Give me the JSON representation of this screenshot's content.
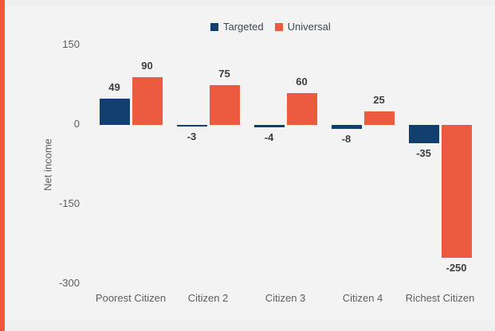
{
  "accent": {
    "stripe_color": "#f0553d"
  },
  "chart_data": {
    "type": "bar",
    "title": "",
    "xlabel": "",
    "ylabel": "Net income",
    "categories": [
      "Poorest Citizen",
      "Citizen 2",
      "Citizen 3",
      "Citizen 4",
      "Richest Citizen"
    ],
    "series": [
      {
        "name": "Targeted",
        "color": "#123f6d",
        "values": [
          49,
          -3,
          -4,
          -8,
          -35
        ]
      },
      {
        "name": "Universal",
        "color": "#ec5b40",
        "values": [
          90,
          75,
          60,
          25,
          -250
        ]
      }
    ],
    "y_ticks": [
      150,
      0,
      -150,
      -300
    ],
    "ylim": [
      -300,
      150
    ],
    "grid": false,
    "legend_position": "top-center",
    "value_label_color": "#3d3d3d",
    "axis_text_color": "#5e5e5e"
  }
}
